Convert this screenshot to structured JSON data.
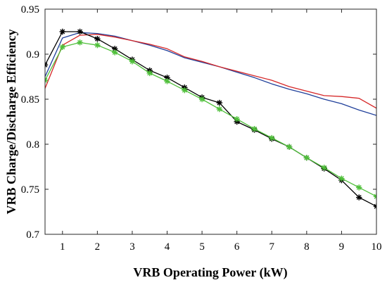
{
  "chart_data": {
    "type": "line",
    "title": "",
    "xlabel": "VRB Operating Power (kW)",
    "ylabel": "VRB Charge/Discharge Efficiency",
    "xlim": [
      0.5,
      10
    ],
    "ylim": [
      0.7,
      0.95
    ],
    "xticks": [
      1,
      2,
      3,
      4,
      5,
      6,
      7,
      8,
      9,
      10
    ],
    "yticks": [
      0.7,
      0.75,
      0.8,
      0.85,
      0.9,
      0.95
    ],
    "xtick_labels": [
      "1",
      "2",
      "3",
      "4",
      "5",
      "6",
      "7",
      "8",
      "9",
      "10"
    ],
    "ytick_labels": [
      "0.7",
      "0.75",
      "0.8",
      "0.85",
      "0.9",
      "0.95"
    ],
    "grid": false,
    "legend": null,
    "series": [
      {
        "color": "#1f3f9a",
        "marker": "none",
        "x": [
          0.5,
          1,
          1.5,
          2,
          2.5,
          3,
          3.5,
          4,
          4.5,
          5,
          5.5,
          6,
          6.5,
          7,
          7.5,
          8,
          8.5,
          9,
          9.5,
          10
        ],
        "y": [
          0.875,
          0.918,
          0.924,
          0.923,
          0.92,
          0.915,
          0.91,
          0.904,
          0.896,
          0.891,
          0.886,
          0.88,
          0.874,
          0.867,
          0.861,
          0.856,
          0.85,
          0.845,
          0.838,
          0.832
        ]
      },
      {
        "color": "#d62728",
        "marker": "none",
        "x": [
          0.5,
          1,
          1.5,
          2,
          2.5,
          3,
          3.5,
          4,
          4.5,
          5,
          5.5,
          6,
          6.5,
          7,
          7.5,
          8,
          8.5,
          9,
          9.5,
          10
        ],
        "y": [
          0.862,
          0.91,
          0.921,
          0.922,
          0.919,
          0.915,
          0.911,
          0.906,
          0.897,
          0.892,
          0.886,
          0.881,
          0.876,
          0.871,
          0.864,
          0.859,
          0.854,
          0.853,
          0.851,
          0.84
        ]
      },
      {
        "color": "#000000",
        "marker": "asterisk",
        "x": [
          0.5,
          1,
          1.5,
          2,
          2.5,
          3,
          3.5,
          4,
          4.5,
          5,
          5.5,
          6,
          6.5,
          7,
          7.5,
          8,
          8.5,
          9,
          9.5,
          10
        ],
        "y": [
          0.888,
          0.925,
          0.925,
          0.917,
          0.906,
          0.894,
          0.882,
          0.874,
          0.863,
          0.852,
          0.846,
          0.825,
          0.816,
          0.806,
          0.797,
          0.785,
          0.773,
          0.76,
          0.741,
          0.731
        ]
      },
      {
        "color": "#4fbf3a",
        "marker": "asterisk",
        "x": [
          0.5,
          1,
          1.5,
          2,
          2.5,
          3,
          3.5,
          4,
          4.5,
          5,
          5.5,
          6,
          6.5,
          7,
          7.5,
          8,
          8.5,
          9,
          9.5,
          10
        ],
        "y": [
          0.871,
          0.908,
          0.913,
          0.91,
          0.902,
          0.892,
          0.879,
          0.87,
          0.86,
          0.85,
          0.839,
          0.828,
          0.817,
          0.807,
          0.797,
          0.785,
          0.774,
          0.762,
          0.752,
          0.742
        ]
      }
    ]
  }
}
